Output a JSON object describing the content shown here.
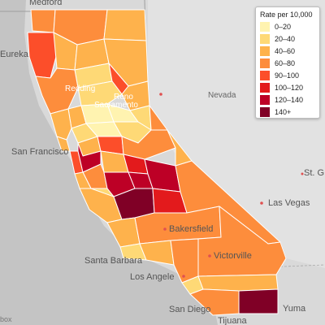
{
  "legend": {
    "title": "Rate per 10,000",
    "items": [
      {
        "label": "0–20",
        "color": "#fff3b0"
      },
      {
        "label": "20–40",
        "color": "#fed976"
      },
      {
        "label": "40–60",
        "color": "#feb24c"
      },
      {
        "label": "60–80",
        "color": "#fd8d3c"
      },
      {
        "label": "90–100",
        "color": "#fc4e2a"
      },
      {
        "label": "100–120",
        "color": "#e31a1c"
      },
      {
        "label": "120–140",
        "color": "#bd0026"
      },
      {
        "label": "140+",
        "color": "#800026"
      }
    ]
  },
  "places": {
    "medford": "Medford",
    "eureka": "Eureka",
    "redding": "Redding",
    "reno": "Reno",
    "sacramento": "Sacramento",
    "nevada": "Nevada",
    "san_francisco": "San Francisco",
    "st_george": "St. G",
    "las_vegas": "Las Vegas",
    "bakersfield": "Bakersfield",
    "victorville": "Victorville",
    "santa_barbara": "Santa Barbara",
    "los_angeles": "Los Angele",
    "san_diego": "San Diego",
    "yuma": "Yuma",
    "tijuana": "Tijuana"
  },
  "attribution": "box"
}
